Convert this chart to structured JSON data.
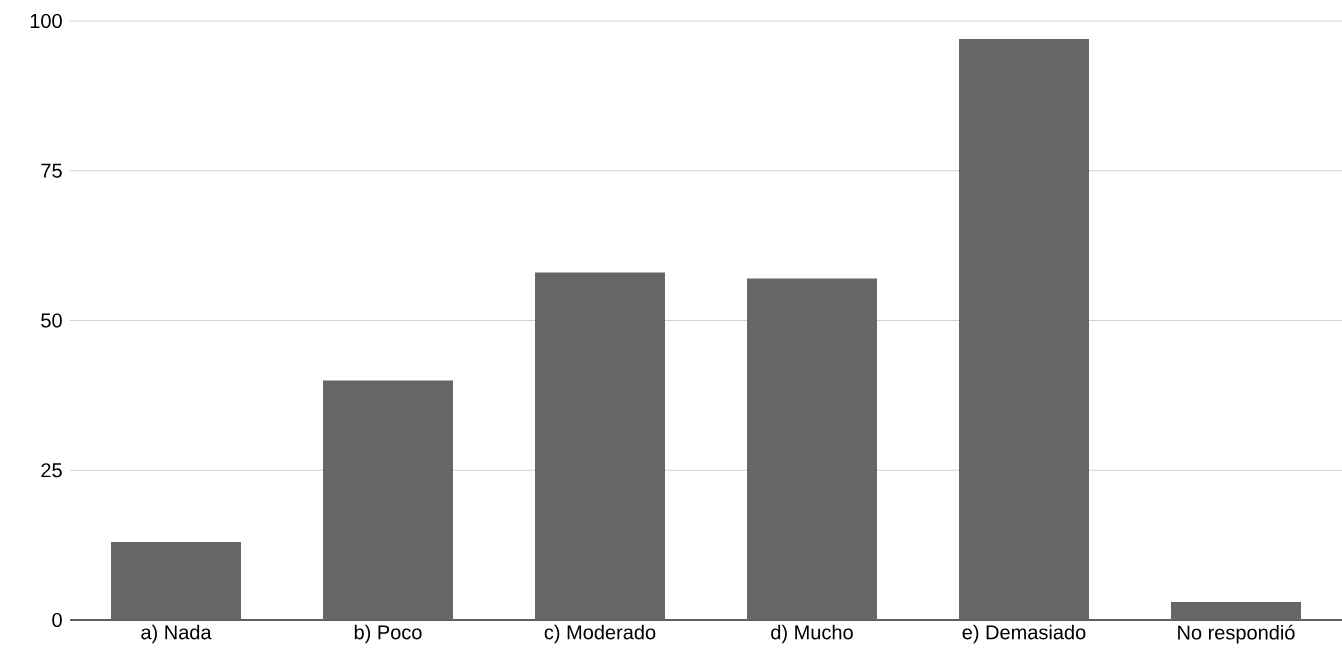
{
  "chart_data": {
    "type": "bar",
    "categories": [
      "a) Nada",
      "b) Poco",
      "c) Moderado",
      "d) Mucho",
      "e) Demasiado",
      "No respondió"
    ],
    "values": [
      13,
      40,
      58,
      57,
      97,
      3
    ],
    "color": "#666666",
    "ylim": [
      0,
      100
    ],
    "yticks": [
      0,
      25,
      50,
      75,
      100
    ],
    "grid": "y"
  }
}
